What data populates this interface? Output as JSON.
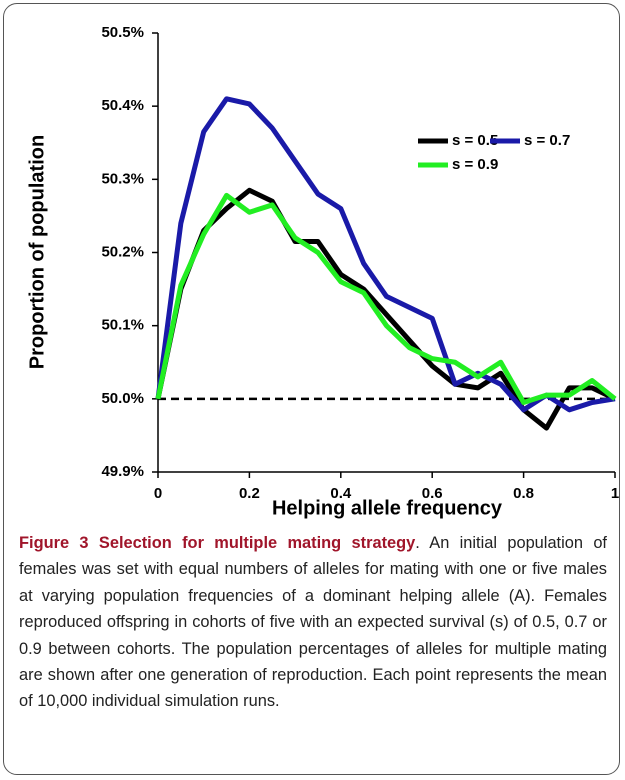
{
  "chart_data": {
    "type": "line",
    "xlabel": "Helping allele frequency",
    "ylabel": "Proportion of population",
    "x": [
      0,
      0.05,
      0.1,
      0.15,
      0.2,
      0.25,
      0.3,
      0.35,
      0.4,
      0.45,
      0.5,
      0.55,
      0.6,
      0.65,
      0.7,
      0.75,
      0.8,
      0.85,
      0.9,
      0.95,
      1
    ],
    "series": [
      {
        "name": "s = 0.5",
        "color": "#000000",
        "values": [
          50.0,
          50.15,
          50.23,
          50.26,
          50.285,
          50.27,
          50.215,
          50.215,
          50.17,
          50.15,
          50.115,
          50.08,
          50.045,
          50.02,
          50.015,
          50.035,
          49.985,
          49.96,
          50.015,
          50.015,
          50.0
        ]
      },
      {
        "name": "s = 0.7",
        "color": "#1a1aa8",
        "values": [
          50.0,
          50.24,
          50.365,
          50.41,
          50.403,
          50.37,
          50.325,
          50.28,
          50.26,
          50.185,
          50.14,
          50.125,
          50.11,
          50.02,
          50.035,
          50.02,
          49.985,
          50.005,
          49.985,
          49.995,
          50.0
        ]
      },
      {
        "name": "s = 0.9",
        "color": "#22ee22",
        "values": [
          50.0,
          50.155,
          50.225,
          50.278,
          50.255,
          50.265,
          50.22,
          50.2,
          50.16,
          50.145,
          50.1,
          50.07,
          50.055,
          50.05,
          50.03,
          50.05,
          49.995,
          50.005,
          50.005,
          50.025,
          50.0
        ]
      }
    ],
    "reference_line": 50.0,
    "xlim": [
      0,
      1
    ],
    "xticks": [
      0,
      0.2,
      0.4,
      0.6,
      0.8,
      1
    ],
    "ylim": [
      49.9,
      50.5
    ],
    "yticks": [
      {
        "value": 49.9,
        "label": "49.9%"
      },
      {
        "value": 50.0,
        "label": "50.0%"
      },
      {
        "value": 50.1,
        "label": "50.1%"
      },
      {
        "value": 50.2,
        "label": "50.2%"
      },
      {
        "value": 50.3,
        "label": "50.3%"
      },
      {
        "value": 50.4,
        "label": "50.4%"
      },
      {
        "value": 50.5,
        "label": "50.5%"
      }
    ]
  },
  "caption": {
    "label": "Figure 3",
    "title": "Selection for multiple mating strategy",
    "text": ". An initial population of females was set with equal numbers of alleles for mating with one or five males at varying population frequencies of a dominant helping allele (A). Females reproduced offspring in cohorts of five with an expected survival (s) of 0.5, 0.7 or 0.9 between cohorts. The population percentages of alleles for multiple mating are shown after one generation of reproduction. Each point represents the mean of 10,000 individual simulation runs."
  }
}
